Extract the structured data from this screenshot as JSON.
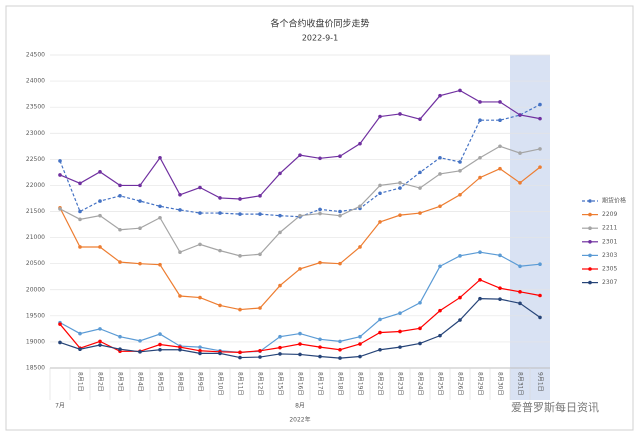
{
  "chart_data": {
    "type": "line",
    "title": "各个合约收盘价同步走势",
    "subtitle": "2022-9-1",
    "categories": [
      null,
      "8月1日",
      "8月2日",
      "8月3日",
      "8月4日",
      "8月5日",
      "8月8日",
      "8月9日",
      "8月10日",
      "8月11日",
      "8月12日",
      "8月15日",
      "8月16日",
      "8月17日",
      "8月18日",
      "8月19日",
      "8月22日",
      "8月23日",
      "8月24日",
      "8月25日",
      "8月26日",
      "8月29日",
      "8月30日",
      "8月31日",
      "9月1日"
    ],
    "x_groups": [
      {
        "label": "7月",
        "index": 0
      },
      {
        "label": "8月",
        "index": 12
      }
    ],
    "x_label": "2022年",
    "watermark": "爱普罗斯每日资讯",
    "highlight": {
      "start": 23,
      "end": 24,
      "color": "#d9e2f3"
    },
    "ylim": [
      18500,
      24500
    ],
    "yticks": [
      18500,
      19000,
      19500,
      20000,
      20500,
      21000,
      21500,
      22000,
      22500,
      23000,
      23500,
      24000,
      24500
    ],
    "grid": true,
    "legend": "right",
    "series": [
      {
        "name": "期货价格",
        "color": "#4472c4",
        "dashed": true,
        "values": [
          22470,
          21500,
          21700,
          21800,
          21700,
          21600,
          21530,
          21470,
          21470,
          21450,
          21450,
          21420,
          21400,
          21540,
          21500,
          21560,
          21850,
          21950,
          22250,
          22530,
          22450,
          23250,
          23250,
          23350,
          23550
        ]
      },
      {
        "name": "2209",
        "color": "#ed7d31",
        "values": [
          21570,
          20820,
          20820,
          20530,
          20500,
          20480,
          19880,
          19850,
          19700,
          19620,
          19650,
          20080,
          20400,
          20520,
          20500,
          20820,
          21300,
          21430,
          21470,
          21600,
          21820,
          22150,
          22320,
          22050,
          22350
        ]
      },
      {
        "name": "2211",
        "color": "#a5a5a5",
        "values": [
          21550,
          21350,
          21420,
          21150,
          21180,
          21380,
          20720,
          20870,
          20750,
          20650,
          20680,
          21100,
          21420,
          21460,
          21420,
          21600,
          22000,
          22050,
          21950,
          22220,
          22280,
          22530,
          22750,
          22620,
          22700
        ]
      },
      {
        "name": "2301",
        "color": "#7030a0",
        "values": [
          22200,
          22040,
          22260,
          22000,
          22000,
          22530,
          21820,
          21960,
          21760,
          21740,
          21800,
          22230,
          22580,
          22520,
          22560,
          22800,
          23320,
          23370,
          23270,
          23720,
          23820,
          23600,
          23600,
          23350,
          23280
        ]
      },
      {
        "name": "2303",
        "color": "#5b9bd5",
        "values": [
          19370,
          19160,
          19250,
          19100,
          19020,
          19150,
          18920,
          18900,
          18830,
          18800,
          18820,
          19100,
          19160,
          19050,
          19010,
          19100,
          19430,
          19550,
          19750,
          20450,
          20650,
          20720,
          20660,
          20450,
          20490
        ]
      },
      {
        "name": "2305",
        "color": "#ff0000",
        "values": [
          19340,
          18880,
          19010,
          18820,
          18820,
          18950,
          18900,
          18830,
          18810,
          18800,
          18830,
          18890,
          18960,
          18900,
          18850,
          18960,
          19180,
          19200,
          19260,
          19600,
          19850,
          20190,
          20030,
          19960,
          19890
        ]
      },
      {
        "name": "2307",
        "color": "#264478",
        "values": [
          18990,
          18860,
          18940,
          18860,
          18810,
          18850,
          18850,
          18780,
          18780,
          18700,
          18710,
          18770,
          18760,
          18720,
          18690,
          18720,
          18850,
          18900,
          18970,
          19120,
          19420,
          19830,
          19820,
          19740,
          19470
        ]
      }
    ]
  }
}
